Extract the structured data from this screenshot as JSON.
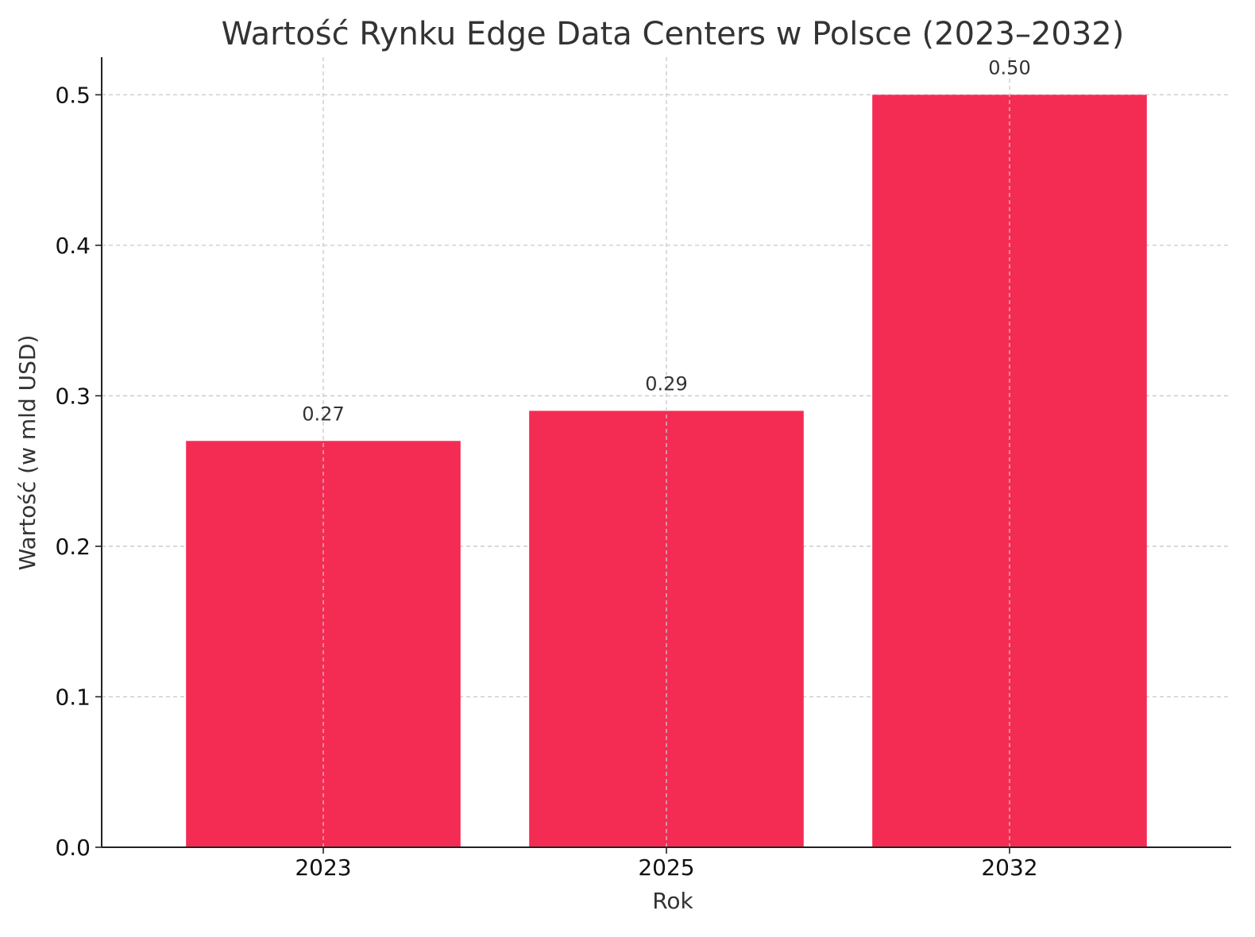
{
  "chart_data": {
    "type": "bar",
    "title": "Wartość Rynku Edge Data Centers w Polsce (2023–2032)",
    "xlabel": "Rok",
    "ylabel": "Wartość (w mld USD)",
    "categories": [
      "2023",
      "2025",
      "2032"
    ],
    "values": [
      0.27,
      0.29,
      0.5
    ],
    "data_labels": [
      "0.27",
      "0.29",
      "0.50"
    ],
    "ylim": [
      0,
      0.525
    ],
    "yticks": [
      0.0,
      0.1,
      0.2,
      0.3,
      0.4,
      0.5
    ],
    "ytick_labels": [
      "0.0",
      "0.1",
      "0.2",
      "0.3",
      "0.4",
      "0.5"
    ],
    "grid": true,
    "bar_color": "#f42b53"
  }
}
